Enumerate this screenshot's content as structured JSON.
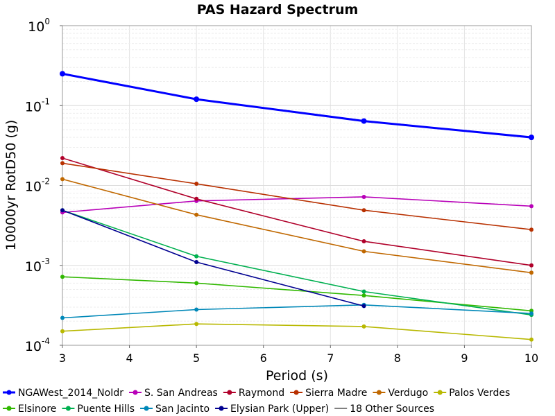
{
  "chart_data": {
    "type": "line",
    "title": "PAS Hazard Spectrum",
    "xlabel": "Period (s)",
    "ylabel": "10000yr RotD50 (g)",
    "xlim": [
      3,
      10
    ],
    "ylim": [
      0.0001,
      1
    ],
    "yscale": "log",
    "grid": true,
    "legend_position": "bottom",
    "x_ticks": [
      "3",
      "4",
      "5",
      "6",
      "7",
      "8",
      "9",
      "10"
    ],
    "y_ticks": [
      {
        "base": "10",
        "exp": "0"
      },
      {
        "base": "10",
        "exp": "-1"
      },
      {
        "base": "10",
        "exp": "-2"
      },
      {
        "base": "10",
        "exp": "-3"
      },
      {
        "base": "10",
        "exp": "-4"
      }
    ],
    "series": [
      {
        "name": "NGAWest_2014_NoIdr",
        "color": "#0000ff",
        "bold": true,
        "x": [
          3,
          5,
          7.5,
          10
        ],
        "values": [
          0.25,
          0.12,
          0.064,
          0.04
        ]
      },
      {
        "name": "S. San Andreas",
        "color": "#b800b8",
        "x": [
          3,
          5,
          7.5,
          10
        ],
        "values": [
          0.0046,
          0.0064,
          0.0072,
          0.0055
        ]
      },
      {
        "name": "Raymond",
        "color": "#b0002a",
        "x": [
          3,
          5,
          7.5,
          10
        ],
        "values": [
          0.022,
          0.0068,
          0.002,
          0.001
        ]
      },
      {
        "name": "Sierra Madre",
        "color": "#b83000",
        "x": [
          3,
          5,
          7.5,
          10
        ],
        "values": [
          0.019,
          0.0105,
          0.0049,
          0.0028
        ]
      },
      {
        "name": "Verdugo",
        "color": "#c06800",
        "x": [
          3,
          5,
          7.5,
          10
        ],
        "values": [
          0.012,
          0.0043,
          0.0015,
          0.00081
        ]
      },
      {
        "name": "Palos Verdes",
        "color": "#b8b800",
        "x": [
          3,
          5,
          7.5,
          10
        ],
        "values": [
          0.00015,
          0.000185,
          0.000172,
          0.000118
        ]
      },
      {
        "name": "Elsinore",
        "color": "#30b800",
        "x": [
          3,
          5,
          7.5,
          10
        ],
        "values": [
          0.00072,
          0.0006,
          0.00042,
          0.00027
        ]
      },
      {
        "name": "Puente Hills",
        "color": "#00b050",
        "x": [
          3,
          5,
          7.5,
          10
        ],
        "values": [
          0.0049,
          0.0013,
          0.00047,
          0.00024
        ]
      },
      {
        "name": "San Jacinto",
        "color": "#0088b8",
        "x": [
          3,
          5,
          7.5,
          10
        ],
        "values": [
          0.00022,
          0.00028,
          0.00032,
          0.00025
        ]
      },
      {
        "name": "Elysian Park (Upper)",
        "color": "#000090",
        "x": [
          3,
          5,
          7.5
        ],
        "values": [
          0.0049,
          0.0011,
          0.00031
        ]
      },
      {
        "name": "18 Other Sources",
        "color": "#808080",
        "no_marker": true,
        "x": [],
        "values": []
      }
    ]
  }
}
